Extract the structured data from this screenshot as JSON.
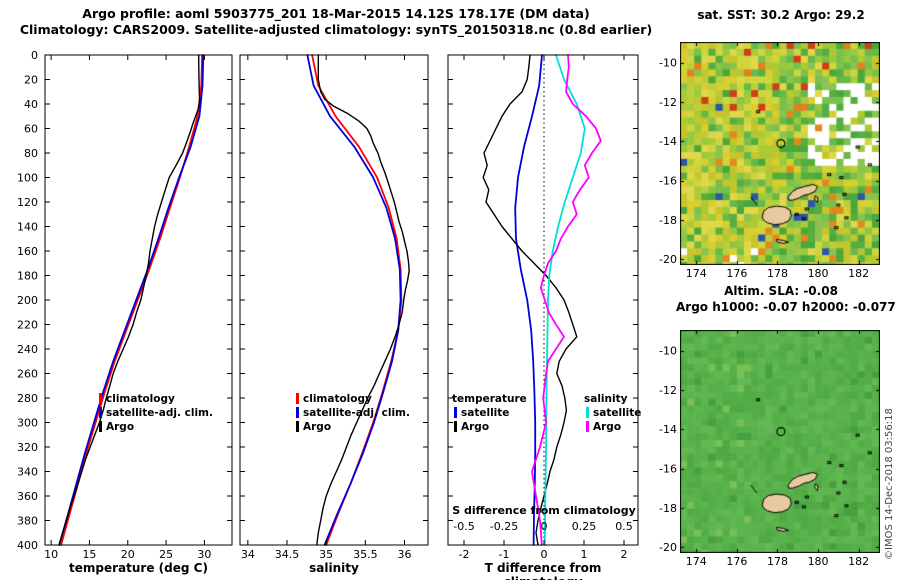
{
  "header": {
    "line1": "Argo profile: aoml 5903775_201 18-Mar-2015 14.12S 178.17E (DM data)",
    "line2": "Climatology: CARS2009. Satellite-adjusted climatology: synTS_20150318.nc (0.8d earlier)"
  },
  "watermark": "©IMOS 14-Dec-2018 03:56:18",
  "depth_ticks": [
    0,
    20,
    40,
    60,
    80,
    100,
    120,
    140,
    160,
    180,
    200,
    220,
    240,
    260,
    280,
    300,
    320,
    340,
    360,
    380,
    400
  ],
  "legend_profile": [
    {
      "label": "climatology",
      "color": "#ff0000"
    },
    {
      "label": "satellite-adj. clim.",
      "color": "#0000dd"
    },
    {
      "label": "Argo",
      "color": "#000000"
    }
  ],
  "legend_diff": {
    "col1": {
      "header": "temperature",
      "entries": [
        {
          "label": "satellite",
          "color": "#0000dd"
        },
        {
          "label": "Argo",
          "color": "#000000"
        }
      ]
    },
    "col2": {
      "header": "salinity",
      "entries": [
        {
          "label": "satellite",
          "color": "#00dddd"
        },
        {
          "label": "Argo",
          "color": "#ff00ff"
        }
      ]
    }
  },
  "colors": {
    "climatology": "#ff0000",
    "satellite_adjusted": "#0000dd",
    "argo": "#000000",
    "satellite_salinity": "#00dddd",
    "argo_salinity": "#ff00ff",
    "land": "#e8c9a0",
    "sst_yellows": [
      "#d9ce2f",
      "#cfd63d",
      "#c5c52c",
      "#bccf3a",
      "#e0d84a",
      "#adc936"
    ],
    "sst_greens": [
      "#55ae3f",
      "#67b84a",
      "#49a83b",
      "#79c04d",
      "#8ac44f",
      "#99c93d"
    ],
    "sla_greens": [
      "#53ad47",
      "#58b14b",
      "#5db54f",
      "#50a943",
      "#62b953",
      "#55af49",
      "#5bb34d"
    ]
  },
  "maps": {
    "extent": {
      "lon": [
        173.2,
        183.05
      ],
      "lat": [
        -8.95,
        -20.3
      ]
    },
    "xticks": [
      174,
      176,
      178,
      180,
      182
    ],
    "yticks": [
      -10,
      -12,
      -14,
      -16,
      -18,
      -20
    ],
    "marker": {
      "lon": 178.17,
      "lat": -14.12
    },
    "land_color": "#e8c9a0",
    "sst": {
      "title": "sat. SST: 30.2 Argo: 29.2",
      "sat_sst": 30.2,
      "argo_sst": 29.2,
      "seed": 20150318
    },
    "sla": {
      "title_line1": "Altim. SLA: -0.08",
      "title_line2": "Argo h1000: -0.07 h2000: -0.077",
      "altim_sla": -0.08,
      "argo_h1000": -0.07,
      "argo_h2000": -0.077,
      "seed": 5903775
    }
  },
  "chart_data": [
    {
      "type": "line",
      "xlabel": "temperature (deg C)",
      "xlim": [
        9.2,
        33.6
      ],
      "xticks": [
        10,
        15,
        20,
        25,
        30
      ],
      "ylim": [
        0,
        400
      ],
      "series": [
        {
          "name": "climatology",
          "color": "#ff0000",
          "depth": [
            0,
            25,
            50,
            75,
            100,
            125,
            150,
            175,
            200,
            225,
            250,
            275,
            300,
            325,
            350,
            375,
            400
          ],
          "values": [
            29.7,
            29.6,
            29.1,
            28.0,
            26.8,
            25.5,
            24.2,
            22.8,
            21.3,
            19.8,
            18.3,
            17.0,
            15.8,
            14.6,
            13.5,
            12.4,
            11.3
          ]
        },
        {
          "name": "satellite-adj. clim.",
          "color": "#0000dd",
          "depth": [
            0,
            25,
            50,
            75,
            100,
            125,
            150,
            175,
            200,
            225,
            250,
            275,
            300,
            325,
            350,
            375,
            400
          ],
          "values": [
            29.85,
            29.75,
            29.35,
            28.2,
            26.7,
            25.3,
            24.0,
            22.6,
            21.1,
            19.6,
            18.1,
            16.8,
            15.6,
            14.4,
            13.3,
            12.2,
            11.05
          ]
        },
        {
          "name": "Argo",
          "color": "#000000",
          "depth": [
            0,
            10,
            20,
            30,
            38,
            44,
            50,
            56,
            62,
            70,
            80,
            90,
            100,
            110,
            120,
            130,
            140,
            150,
            160,
            170,
            180,
            190,
            200,
            210,
            220,
            230,
            240,
            250,
            260,
            270,
            280,
            290,
            300,
            310,
            320,
            330,
            340,
            350,
            360,
            370,
            380,
            390,
            400
          ],
          "values": [
            29.25,
            29.27,
            29.3,
            29.33,
            29.38,
            29.2,
            28.85,
            28.5,
            28.2,
            27.75,
            27.15,
            26.3,
            25.4,
            24.9,
            24.4,
            23.9,
            23.5,
            23.2,
            22.9,
            22.7,
            22.4,
            22.05,
            21.7,
            21.15,
            20.7,
            20.1,
            19.4,
            18.7,
            18.1,
            17.65,
            17.2,
            16.8,
            16.3,
            15.7,
            15.1,
            14.5,
            14.0,
            13.5,
            13.0,
            12.45,
            12.0,
            11.5,
            11.05
          ]
        }
      ]
    },
    {
      "type": "line",
      "xlabel": "salinity",
      "xlim": [
        33.9,
        36.3
      ],
      "xticks": [
        34,
        34.5,
        35,
        35.5,
        36
      ],
      "ylim": [
        0,
        400
      ],
      "series": [
        {
          "name": "climatology",
          "color": "#ff0000",
          "depth": [
            0,
            25,
            50,
            75,
            100,
            125,
            150,
            175,
            200,
            225,
            250,
            275,
            300,
            325,
            350,
            375,
            400
          ],
          "values": [
            34.82,
            34.9,
            35.12,
            35.42,
            35.65,
            35.8,
            35.9,
            35.95,
            35.96,
            35.92,
            35.83,
            35.72,
            35.6,
            35.46,
            35.31,
            35.15,
            35.0
          ]
        },
        {
          "name": "satellite-adj. clim.",
          "color": "#0000dd",
          "depth": [
            0,
            25,
            50,
            75,
            100,
            125,
            150,
            175,
            200,
            225,
            250,
            275,
            300,
            325,
            350,
            375,
            400
          ],
          "values": [
            34.76,
            34.84,
            35.05,
            35.36,
            35.6,
            35.77,
            35.88,
            35.94,
            35.95,
            35.92,
            35.84,
            35.73,
            35.61,
            35.47,
            35.31,
            35.14,
            34.98
          ]
        },
        {
          "name": "Argo",
          "color": "#000000",
          "depth": [
            0,
            10,
            20,
            30,
            36,
            42,
            48,
            54,
            60,
            66,
            72,
            80,
            88,
            96,
            104,
            112,
            120,
            128,
            136,
            144,
            152,
            160,
            168,
            176,
            184,
            192,
            200,
            210,
            220,
            230,
            240,
            250,
            260,
            270,
            280,
            290,
            300,
            310,
            320,
            330,
            340,
            350,
            360,
            370,
            380,
            390,
            400
          ],
          "values": [
            34.9,
            34.9,
            34.9,
            34.93,
            34.98,
            35.1,
            35.28,
            35.42,
            35.52,
            35.57,
            35.6,
            35.66,
            35.7,
            35.75,
            35.79,
            35.83,
            35.87,
            35.9,
            35.93,
            35.97,
            36.0,
            36.03,
            36.05,
            36.06,
            36.04,
            36.01,
            35.99,
            35.97,
            35.93,
            35.88,
            35.82,
            35.75,
            35.68,
            35.61,
            35.53,
            35.46,
            35.39,
            35.32,
            35.26,
            35.2,
            35.13,
            35.06,
            35.0,
            34.96,
            34.93,
            34.9,
            34.88
          ]
        }
      ]
    },
    {
      "type": "line",
      "xlabel": "T difference from climatology",
      "xlim": [
        -2.4,
        2.35
      ],
      "xticks": [
        -2,
        -1,
        0,
        1,
        2
      ],
      "ylim": [
        0,
        400
      ],
      "s_axis": {
        "label": "S difference from climatology",
        "ticks": [
          -0.5,
          -0.25,
          0,
          0.25,
          0.5
        ],
        "scale": 4
      },
      "series": [
        {
          "name": "satellite T",
          "color": "#0000dd",
          "axis": "T",
          "depth": [
            0,
            25,
            50,
            75,
            100,
            125,
            150,
            175,
            200,
            225,
            250,
            275,
            300,
            325,
            350,
            375,
            400
          ],
          "values": [
            -0.05,
            -0.12,
            -0.3,
            -0.5,
            -0.65,
            -0.72,
            -0.7,
            -0.58,
            -0.42,
            -0.32,
            -0.27,
            -0.24,
            -0.22,
            -0.22,
            -0.23,
            -0.25,
            -0.26
          ]
        },
        {
          "name": "Argo T",
          "color": "#000000",
          "axis": "T",
          "depth": [
            0,
            10,
            20,
            30,
            40,
            50,
            60,
            70,
            80,
            90,
            100,
            110,
            120,
            130,
            140,
            150,
            160,
            170,
            180,
            190,
            200,
            210,
            220,
            230,
            240,
            250,
            260,
            270,
            280,
            290,
            300,
            310,
            320,
            330,
            340,
            350,
            360,
            370,
            380,
            390,
            400
          ],
          "values": [
            -0.35,
            -0.38,
            -0.42,
            -0.55,
            -0.85,
            -1.05,
            -1.2,
            -1.35,
            -1.5,
            -1.42,
            -1.52,
            -1.38,
            -1.45,
            -1.25,
            -1.05,
            -0.8,
            -0.55,
            -0.25,
            0.05,
            0.3,
            0.5,
            0.62,
            0.72,
            0.82,
            0.55,
            0.38,
            0.32,
            0.45,
            0.52,
            0.56,
            0.5,
            0.42,
            0.32,
            0.25,
            0.15,
            0.08,
            0.0,
            -0.08,
            -0.15,
            -0.2,
            -0.15
          ]
        },
        {
          "name": "satellite S",
          "color": "#00dddd",
          "axis": "S",
          "depth": [
            0,
            20,
            40,
            60,
            80,
            100,
            120,
            140,
            160,
            180,
            200,
            240,
            280,
            320,
            360,
            400
          ],
          "values": [
            0.075,
            0.125,
            0.205,
            0.255,
            0.23,
            0.18,
            0.13,
            0.088,
            0.055,
            0.033,
            0.025,
            0.02,
            0.015,
            0.013,
            0.008,
            0.005
          ]
        },
        {
          "name": "Argo S",
          "color": "#ff00ff",
          "axis": "S",
          "depth": [
            0,
            10,
            20,
            30,
            40,
            50,
            60,
            70,
            80,
            90,
            100,
            110,
            120,
            130,
            140,
            150,
            160,
            170,
            180,
            190,
            200,
            210,
            220,
            230,
            240,
            250,
            260,
            280,
            300,
            320,
            340,
            360,
            380,
            400
          ],
          "values": [
            0.15,
            0.155,
            0.145,
            0.138,
            0.18,
            0.263,
            0.325,
            0.355,
            0.3,
            0.255,
            0.28,
            0.225,
            0.18,
            0.205,
            0.15,
            0.105,
            0.075,
            0.025,
            0.0,
            -0.02,
            0.005,
            0.03,
            0.075,
            0.125,
            0.075,
            0.025,
            0.013,
            -0.005,
            0.013,
            -0.025,
            -0.075,
            -0.05,
            -0.025,
            -0.013
          ]
        }
      ]
    }
  ]
}
